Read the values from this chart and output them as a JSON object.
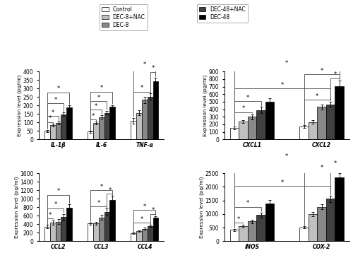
{
  "legend_labels": [
    "Control",
    "DEC-8+NAC",
    "DEC-8",
    "DEC-48+NAC",
    "DEC-48"
  ],
  "bar_colors": [
    "#ffffff",
    "#c0c0c0",
    "#888888",
    "#404040",
    "#000000"
  ],
  "bar_edge_color": "#000000",
  "subplot1": {
    "groups": [
      "IL-1β",
      "IL-6",
      "TNF-α"
    ],
    "values": [
      [
        50,
        83,
        97,
        148,
        187
      ],
      [
        45,
        97,
        132,
        157,
        193
      ],
      [
        110,
        157,
        233,
        252,
        342
      ]
    ],
    "errors": [
      [
        6,
        8,
        8,
        10,
        12
      ],
      [
        5,
        8,
        10,
        12,
        10
      ],
      [
        18,
        15,
        18,
        18,
        22
      ]
    ],
    "ylim": [
      0,
      400
    ],
    "yticks": [
      0,
      50,
      100,
      150,
      200,
      250,
      300,
      350,
      400
    ],
    "ylabel": "Expression level (pg/ml)",
    "sig_brackets": [
      {
        "g1": 0,
        "b1": 0,
        "g2": 0,
        "b2": 4,
        "level": 3
      },
      {
        "g1": 0,
        "b1": 0,
        "g2": 0,
        "b2": 3,
        "level": 2
      },
      {
        "g1": 0,
        "b1": 0,
        "g2": 0,
        "b2": 2,
        "level": 1
      },
      {
        "g1": 0,
        "b1": 0,
        "g2": 0,
        "b2": 1,
        "level": 0
      },
      {
        "g1": 1,
        "b1": 0,
        "g2": 1,
        "b2": 4,
        "level": 3
      },
      {
        "g1": 1,
        "b1": 0,
        "g2": 1,
        "b2": 3,
        "level": 2
      },
      {
        "g1": 1,
        "b1": 0,
        "g2": 1,
        "b2": 2,
        "level": 1
      },
      {
        "g1": 1,
        "b1": 0,
        "g2": 1,
        "b2": 1,
        "level": 0
      },
      {
        "g1": 2,
        "b1": 3,
        "g2": 2,
        "b2": 4,
        "level": 1
      },
      {
        "g1": 2,
        "b1": 0,
        "g2": 2,
        "b2": 4,
        "level": 2
      },
      {
        "g1": 2,
        "b1": 0,
        "g2": 2,
        "b2": 3,
        "level": 0
      }
    ]
  },
  "subplot2": {
    "groups": [
      "CXCL1",
      "CXCL2"
    ],
    "values": [
      [
        155,
        237,
        300,
        390,
        495
      ],
      [
        168,
        232,
        430,
        465,
        710
      ]
    ],
    "errors": [
      [
        18,
        20,
        35,
        40,
        55
      ],
      [
        18,
        22,
        35,
        35,
        75
      ]
    ],
    "ylim": [
      0,
      900
    ],
    "yticks": [
      0,
      100,
      200,
      300,
      400,
      500,
      600,
      700,
      800,
      900
    ],
    "ylabel": "Expression level (pg/ml)",
    "sig_brackets": [
      {
        "g1": 0,
        "b1": 0,
        "g2": 0,
        "b2": 2,
        "level": 0
      },
      {
        "g1": 0,
        "b1": 0,
        "g2": 0,
        "b2": 3,
        "level": 1
      },
      {
        "g1": 0,
        "b1": 0,
        "g2": 1,
        "b2": 4,
        "level": 3
      },
      {
        "g1": 0,
        "b1": 0,
        "g2": 1,
        "b2": 3,
        "level": 2
      },
      {
        "g1": 1,
        "b1": 3,
        "g2": 1,
        "b2": 4,
        "level": 0
      },
      {
        "g1": 1,
        "b1": 0,
        "g2": 1,
        "b2": 4,
        "level": 1
      },
      {
        "g1": 1,
        "b1": 0,
        "g2": 1,
        "b2": 3,
        "level": 0
      }
    ]
  },
  "subplot3": {
    "groups": [
      "CCL2",
      "CCL3",
      "CCL4"
    ],
    "values": [
      [
        345,
        440,
        460,
        565,
        790
      ],
      [
        415,
        420,
        560,
        695,
        970
      ],
      [
        185,
        235,
        295,
        360,
        550
      ]
    ],
    "errors": [
      [
        35,
        50,
        55,
        75,
        80
      ],
      [
        28,
        32,
        55,
        75,
        95
      ],
      [
        18,
        22,
        30,
        28,
        45
      ]
    ],
    "ylim": [
      0,
      1600
    ],
    "yticks": [
      0,
      200,
      400,
      600,
      800,
      1000,
      1200,
      1400,
      1600
    ],
    "ylabel": "Expression level (pg/ml)",
    "sig_brackets": [
      {
        "g1": 0,
        "b1": 0,
        "g2": 0,
        "b2": 1,
        "level": 0
      },
      {
        "g1": 0,
        "b1": 0,
        "g2": 0,
        "b2": 3,
        "level": 1
      },
      {
        "g1": 0,
        "b1": 0,
        "g2": 0,
        "b2": 4,
        "level": 2
      },
      {
        "g1": 1,
        "b1": 0,
        "g2": 1,
        "b2": 3,
        "level": 0
      },
      {
        "g1": 1,
        "b1": 0,
        "g2": 1,
        "b2": 4,
        "level": 1
      },
      {
        "g1": 1,
        "b1": 3,
        "g2": 1,
        "b2": 4,
        "level": 0
      },
      {
        "g1": 2,
        "b1": 0,
        "g2": 2,
        "b2": 3,
        "level": 0
      },
      {
        "g1": 2,
        "b1": 0,
        "g2": 2,
        "b2": 4,
        "level": 1
      },
      {
        "g1": 2,
        "b1": 3,
        "g2": 2,
        "b2": 4,
        "level": 0
      }
    ]
  },
  "subplot4": {
    "groups": [
      "iNOS",
      "COX-2"
    ],
    "values": [
      [
        420,
        560,
        725,
        960,
        1380
      ],
      [
        510,
        1000,
        1265,
        1560,
        2340
      ]
    ],
    "errors": [
      [
        38,
        48,
        68,
        95,
        125
      ],
      [
        38,
        75,
        95,
        115,
        170
      ]
    ],
    "ylim": [
      0,
      2500
    ],
    "yticks": [
      0,
      500,
      1000,
      1500,
      2000,
      2500
    ],
    "ylabel": "Expression level (pg/ml)",
    "sig_brackets": [
      {
        "g1": 0,
        "b1": 0,
        "g2": 0,
        "b2": 1,
        "level": 0
      },
      {
        "g1": 0,
        "b1": 0,
        "g2": 0,
        "b2": 3,
        "level": 1
      },
      {
        "g1": 0,
        "b1": 0,
        "g2": 1,
        "b2": 4,
        "level": 3
      },
      {
        "g1": 0,
        "b1": 0,
        "g2": 1,
        "b2": 3,
        "level": 2
      },
      {
        "g1": 1,
        "b1": 3,
        "g2": 1,
        "b2": 4,
        "level": 1
      },
      {
        "g1": 1,
        "b1": 0,
        "g2": 1,
        "b2": 4,
        "level": 0
      }
    ]
  }
}
